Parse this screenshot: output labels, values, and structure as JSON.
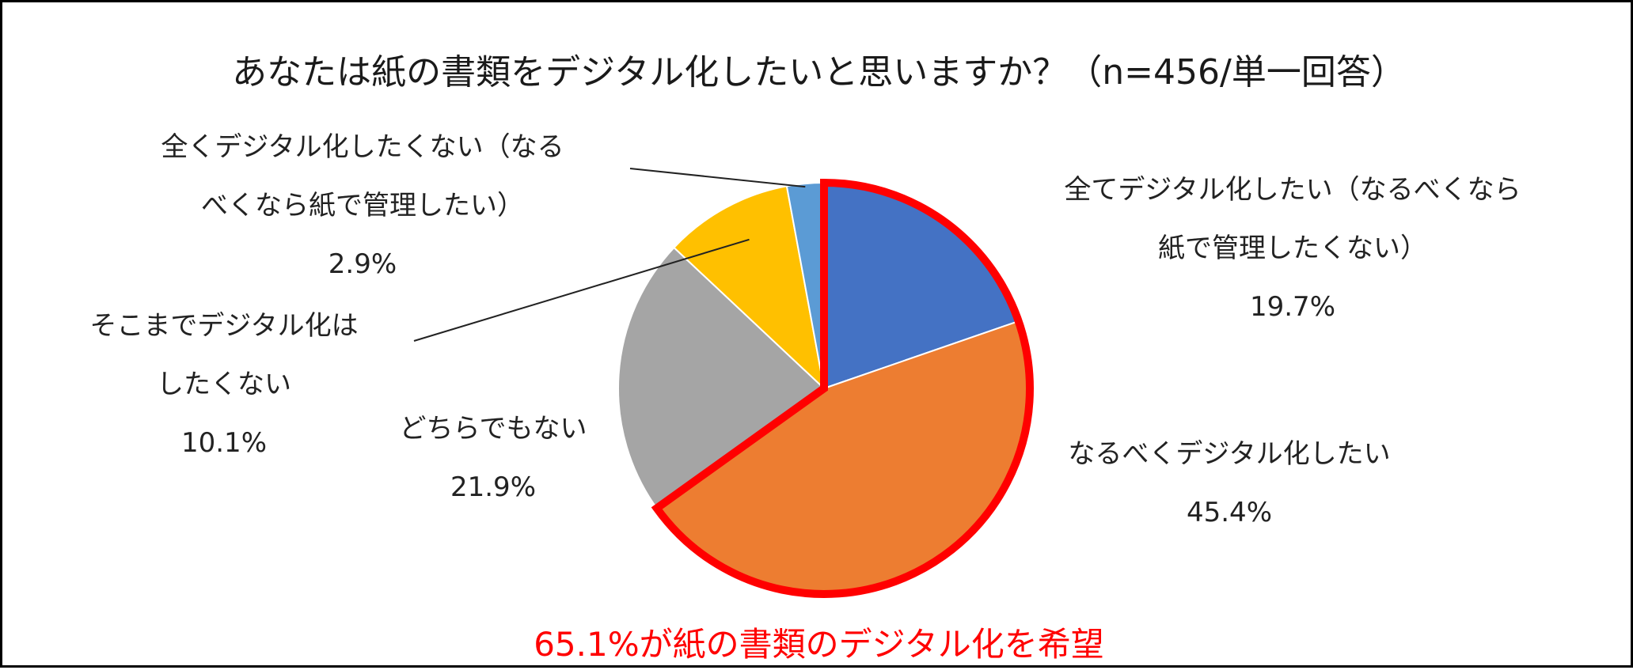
{
  "title": "あなたは紙の書類をデジタル化したいと思いますか？（n=456/単一回答）",
  "footer": "65.1%が紙の書類のデジタル化を希望",
  "colors": {
    "highlight_outline": "#ff0000",
    "footer_text": "#ff0000"
  },
  "labels": {
    "s0": {
      "line1": "全てデジタル化したい（なるべくなら",
      "line2": "紙で管理したくない）",
      "pct": "19.7%"
    },
    "s1": {
      "line1": "なるべくデジタル化したい",
      "pct": "45.4%"
    },
    "s2": {
      "line1": "どちらでもない",
      "pct": "21.9%"
    },
    "s3": {
      "line1": "そこまでデジタル化は",
      "line2": "したくない",
      "pct": "10.1%"
    },
    "s4": {
      "line1": "全くデジタル化したくない（なる",
      "line2": "べくなら紙で管理したい）",
      "pct": "2.9%"
    }
  },
  "chart_data": {
    "type": "pie",
    "title": "あなたは紙の書類をデジタル化したいと思いますか？（n=456/単一回答）",
    "unit": "%",
    "start": "12 o'clock, clockwise",
    "slices": [
      {
        "name": "全てデジタル化したい（なるべくなら紙で管理したくない）",
        "value": 19.7,
        "color": "#4472c4"
      },
      {
        "name": "なるべくデジタル化したい",
        "value": 45.4,
        "color": "#ed7d31"
      },
      {
        "name": "どちらでもない",
        "value": 21.9,
        "color": "#a5a5a5"
      },
      {
        "name": "そこまでデジタル化はしたくない",
        "value": 10.1,
        "color": "#ffc000"
      },
      {
        "name": "全くデジタル化したくない（なるべくなら紙で管理したい）",
        "value": 2.9,
        "color": "#5b9bd5"
      }
    ],
    "highlight": {
      "slices": [
        0,
        1
      ],
      "total": 65.1,
      "outline_color": "#ff0000"
    }
  }
}
